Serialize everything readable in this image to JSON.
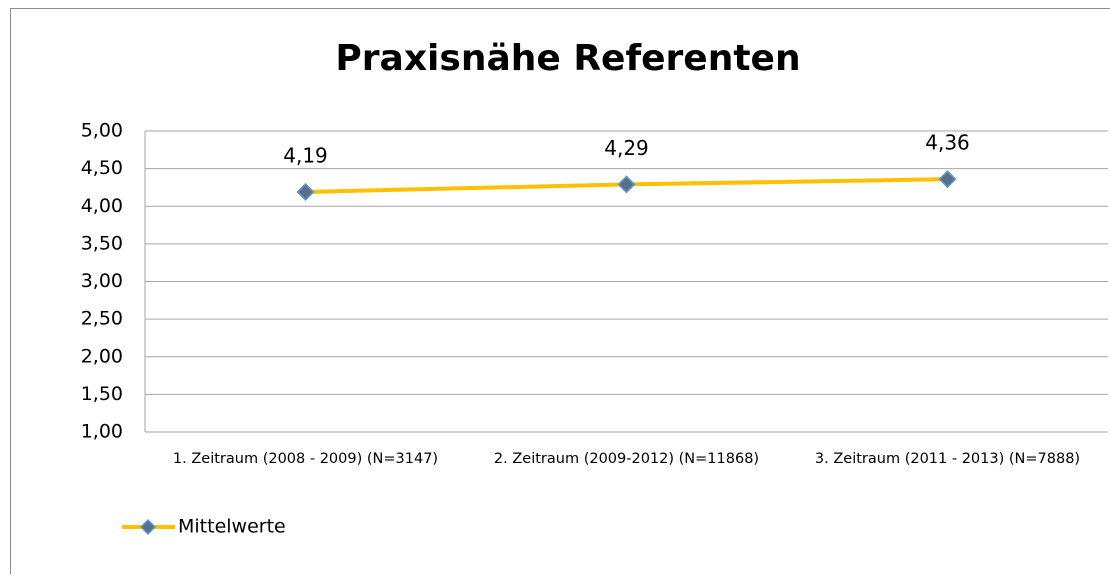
{
  "chart_data": {
    "type": "line",
    "title": "Praxisnähe Referenten",
    "categories": [
      "1. Zeitraum (2008 - 2009) (N=3147)",
      "2. Zeitraum (2009-2012) (N=11868)",
      "3. Zeitraum (2011 - 2013) (N=7888)"
    ],
    "series": [
      {
        "name": "Mittelwerte",
        "color": "#ffc000",
        "marker_color": "#5a6f87",
        "values": [
          4.19,
          4.29,
          4.36
        ],
        "value_labels": [
          "4,19",
          "4,29",
          "4,36"
        ]
      }
    ],
    "ylim": [
      1,
      5
    ],
    "yticks": [
      {
        "value": 1,
        "label": "1,00"
      },
      {
        "value": 1.5,
        "label": "1,50"
      },
      {
        "value": 2,
        "label": "2,00"
      },
      {
        "value": 2.5,
        "label": "2,50"
      },
      {
        "value": 3,
        "label": "3,00"
      },
      {
        "value": 3.5,
        "label": "3,50"
      },
      {
        "value": 4,
        "label": "4,00"
      },
      {
        "value": 4.5,
        "label": "4,50"
      },
      {
        "value": 5,
        "label": "5,00"
      }
    ],
    "grid": true,
    "legend": "bottom-left"
  }
}
